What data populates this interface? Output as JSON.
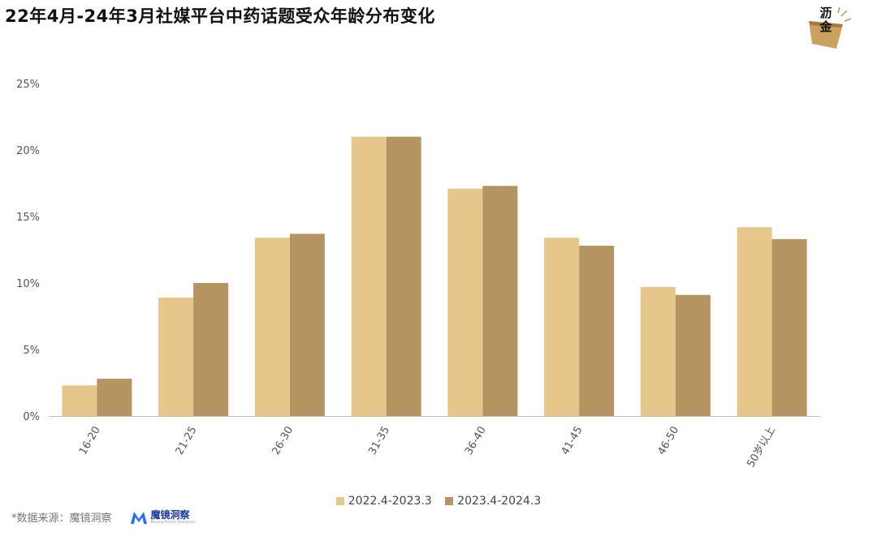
{
  "title": "22年4月-24年3月社媒平台中药话题受众年龄分布变化",
  "logo": {
    "text": "沥金"
  },
  "chart_data": {
    "type": "bar",
    "categories": [
      "16-20",
      "21-25",
      "26-30",
      "31-35",
      "36-40",
      "41-45",
      "46-50",
      "50岁以上"
    ],
    "series": [
      {
        "name": "2022.4-2023.3",
        "color": "#E6C68B",
        "values": [
          2.3,
          8.9,
          13.4,
          21.0,
          17.1,
          13.4,
          9.7,
          14.2
        ]
      },
      {
        "name": "2023.4-2024.3",
        "color": "#B59462",
        "values": [
          2.8,
          10.0,
          13.7,
          21.0,
          17.3,
          12.8,
          9.1,
          13.3
        ]
      }
    ],
    "yticks": [
      "0%",
      "5%",
      "10%",
      "15%",
      "20%",
      "25%"
    ],
    "ylim": [
      0,
      25
    ],
    "xlabel": "",
    "ylabel": "",
    "grid": false,
    "legend_position": "bottom"
  },
  "footer": {
    "source": "*数据来源：魔镜洞察",
    "brand_name": "魔镜洞察",
    "brand_sub": "Moojing Market Intelligence"
  }
}
